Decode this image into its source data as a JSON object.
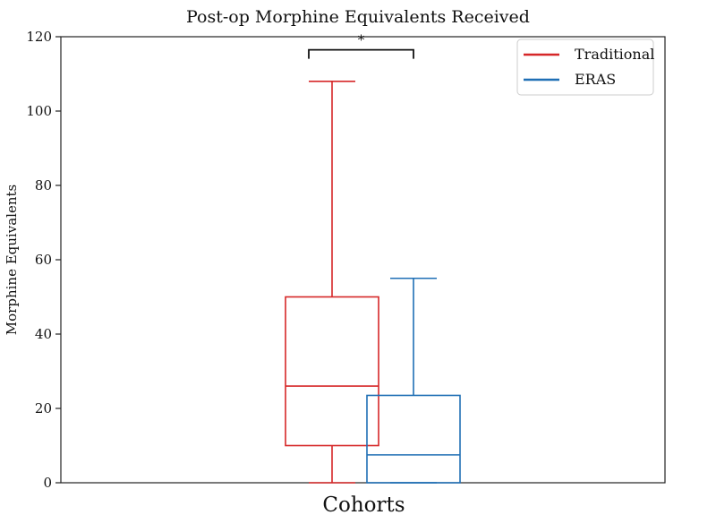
{
  "chart_data": {
    "type": "box",
    "title": "Post-op Morphine Equivalents Received",
    "xlabel": "Cohorts",
    "ylabel": "Morphine Equivalents",
    "ylim": [
      0,
      120
    ],
    "yticks": [
      0,
      20,
      40,
      60,
      80,
      100,
      120
    ],
    "grid": false,
    "legend_position": "top-right",
    "series": [
      {
        "name": "Traditional",
        "color": "#d62728",
        "whisker_low": 0,
        "q1": 10,
        "median": 26,
        "q3": 50,
        "whisker_high": 108
      },
      {
        "name": "ERAS",
        "color": "#1f6fb5",
        "whisker_low": 0,
        "q1": 0,
        "median": 7.5,
        "q3": 23.5,
        "whisker_high": 55
      }
    ],
    "annotations": [
      {
        "text": "*",
        "between": [
          "Traditional",
          "ERAS"
        ],
        "y": 116
      }
    ]
  }
}
